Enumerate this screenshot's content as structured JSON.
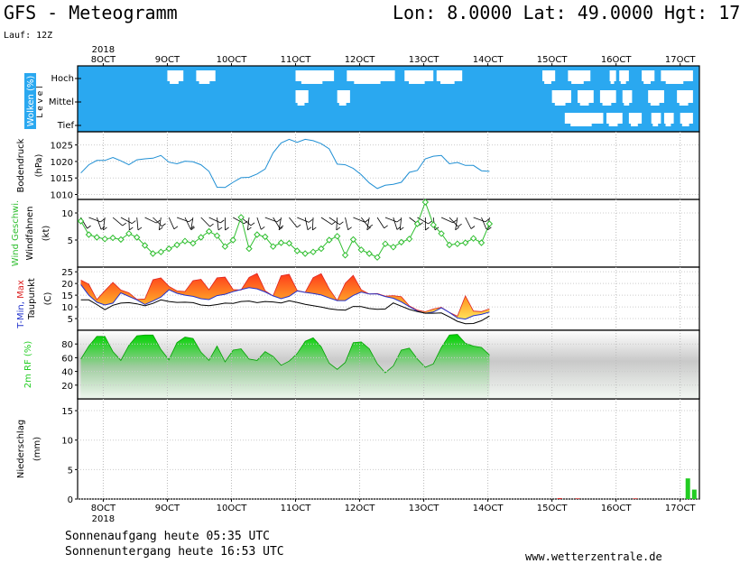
{
  "header": {
    "title": "GFS - Meteogramm",
    "location": "Lon: 8.0000 Lat: 49.0000 Hgt: 17",
    "run": "Lauf: 12Z"
  },
  "footer": {
    "sunrise": "Sonnenaufgang heute 05:35 UTC",
    "sunset": "Sonnenuntergang heute 16:53 UTC",
    "site": "www.wetterzentrale.de"
  },
  "colors": {
    "cloud_sky": "#2aa8f0",
    "pressure": "#1f8fd4",
    "wind_speed": "#2fbe2f",
    "temp_min": "#2233cc",
    "temp_max": "#dd2222",
    "humidity": "#22cc22",
    "precip": "#22cc22"
  },
  "chart_data": {
    "type": "line",
    "year": "2018",
    "x": {
      "unit": "days from 8 OCT 2018 00 UTC",
      "range": [
        -0.4,
        9.3
      ],
      "ticks": [
        0,
        1,
        2,
        3,
        4,
        5,
        6,
        7,
        8,
        9
      ],
      "tick_labels": [
        "8OCT",
        "9OCT",
        "10OCT",
        "11OCT",
        "12OCT",
        "13OCT",
        "14OCT",
        "15OCT",
        "16OCT",
        "17OCT"
      ]
    },
    "panels": [
      {
        "id": "clouds",
        "ylabel": "Wolken (%)",
        "ylabel2": "L e v e l",
        "levels": [
          "Hoch",
          "Mittel",
          "Tief"
        ],
        "clear_spans": {
          "Hoch": [
            [
              1.0,
              1.25
            ],
            [
              1.45,
              1.75
            ],
            [
              3.0,
              3.6
            ],
            [
              3.8,
              4.55
            ],
            [
              4.7,
              5.15
            ],
            [
              5.2,
              5.6
            ],
            [
              6.85,
              7.05
            ],
            [
              7.25,
              7.6
            ],
            [
              7.9,
              8.0
            ],
            [
              8.05,
              8.2
            ],
            [
              8.4,
              8.6
            ],
            [
              8.7,
              9.2
            ]
          ],
          "Mittel": [
            [
              3.0,
              3.2
            ],
            [
              3.65,
              3.85
            ],
            [
              7.0,
              7.3
            ],
            [
              7.4,
              7.65
            ],
            [
              7.75,
              8.0
            ],
            [
              8.1,
              8.25
            ],
            [
              8.5,
              8.75
            ],
            [
              8.95,
              9.2
            ]
          ],
          "Tief": [
            [
              7.2,
              7.8
            ],
            [
              7.85,
              8.1
            ],
            [
              8.2,
              8.4
            ],
            [
              8.55,
              8.7
            ],
            [
              8.75,
              8.9
            ],
            [
              9.0,
              9.2
            ]
          ]
        }
      },
      {
        "id": "pressure",
        "ylabel": "Bodendruck",
        "ylabel2": "(hPa)",
        "yticks": [
          1010,
          1015,
          1020,
          1025
        ],
        "ylim": [
          1008.5,
          1029
        ],
        "values": [
          1016.5,
          1019,
          1020.3,
          1020.3,
          1021.2,
          1020.2,
          1019,
          1020.5,
          1020.8,
          1021,
          1021.8,
          1019.8,
          1019.3,
          1020.1,
          1019.9,
          1019,
          1017,
          1012.2,
          1012.1,
          1013.7,
          1015.1,
          1015.2,
          1016.2,
          1017.7,
          1022.6,
          1025.6,
          1026.7,
          1025.8,
          1026.7,
          1026.3,
          1025.4,
          1023.8,
          1019.2,
          1019,
          1017.9,
          1016,
          1013.5,
          1011.8,
          1012.8,
          1013.1,
          1013.7,
          1016.7,
          1017.3,
          1020.8,
          1021.6,
          1021.8,
          1019.3,
          1019.7,
          1018.8,
          1018.8,
          1017.2,
          1017
        ]
      },
      {
        "id": "wind",
        "ylabel": "Wind Geschwi.",
        "ylabel2": "Windfahnen",
        "ylabel3": "(kt)",
        "yticks": [
          5,
          10
        ],
        "ylim": [
          0,
          12.5
        ],
        "values": [
          8.5,
          6,
          5.5,
          5.2,
          5.4,
          5.1,
          6.2,
          5.5,
          4,
          2.5,
          2.8,
          3.4,
          4.1,
          4.8,
          4.4,
          5.5,
          6.6,
          5.8,
          3.8,
          5,
          9.2,
          3.4,
          6,
          5.6,
          3.8,
          4.5,
          4.4,
          3,
          2.5,
          2.8,
          3.4,
          5,
          5.7,
          2.2,
          5.1,
          3.2,
          2.5,
          1.8,
          4.3,
          3.7,
          4.6,
          5.2,
          8,
          12,
          7.8,
          6.2,
          4.1,
          4.3,
          4.5,
          5.3,
          4.5,
          8
        ]
      },
      {
        "id": "temperature",
        "ylabel": "T-Min, Max",
        "ylabel2": "Taupunkt",
        "ylabel3": "(C)",
        "yticks": [
          5,
          10,
          15,
          20,
          25
        ],
        "ylim": [
          0,
          27
        ],
        "series": [
          {
            "name": "Min",
            "values": [
              19.5,
              15,
              12,
              10.8,
              11.6,
              16,
              14.5,
              13,
              11,
              12.5,
              14.2,
              17.3,
              15.8,
              15,
              14.5,
              13.5,
              13.1,
              14.8,
              15.4,
              16.5,
              17.4,
              18.2,
              17.7,
              16.4,
              14.7,
              13.5,
              14.5,
              16.8,
              16.2,
              15.7,
              15.1,
              13.8,
              12.7,
              12.7,
              14.9,
              16.3,
              15.5,
              15.5,
              14.4,
              13.7,
              12.1,
              10.1,
              8.2,
              7.3,
              7.8,
              9.6,
              7.6,
              5.3,
              4.8,
              6.2,
              6.8,
              7.8
            ]
          },
          {
            "name": "Max",
            "values": [
              21.5,
              19.7,
              13.1,
              16.9,
              20.5,
              17.2,
              16,
              13.2,
              13.4,
              21.6,
              22.4,
              18.8,
              16.8,
              16.6,
              21.2,
              21.8,
              17.3,
              22.4,
              22.7,
              17.4,
              17.2,
              22.6,
              24.3,
              16.9,
              14.7,
              23.3,
              23.9,
              17,
              16.2,
              22.5,
              24.2,
              17.7,
              12.7,
              20.1,
              23.5,
              17.3,
              15.5,
              15.7,
              14.6,
              14.8,
              14.4,
              10.4,
              8.6,
              7.9,
              9.1,
              9.8,
              7.6,
              6,
              14.7,
              8.2,
              8,
              9.1
            ]
          },
          {
            "name": "Taupunkt",
            "values": [
              13,
              13,
              11,
              8.8,
              10.7,
              11.6,
              11.8,
              11.3,
              10.5,
              11.5,
              13,
              12.3,
              11.9,
              12,
              11.8,
              10.8,
              10.5,
              11,
              11.6,
              11.5,
              12.3,
              12.5,
              11.8,
              12.3,
              12.1,
              11.7,
              12.6,
              11.9,
              11.1,
              10.5,
              9.9,
              9.2,
              8.8,
              8.6,
              10.2,
              10.1,
              9.3,
              9,
              9.1,
              11.7,
              10.3,
              8.9,
              8,
              7.3,
              7.3,
              7.4,
              5.7,
              3.8,
              2.8,
              2.9,
              4.1,
              6.1
            ]
          }
        ]
      },
      {
        "id": "humidity",
        "ylabel": "2m RF (%)",
        "yticks": [
          20,
          40,
          60,
          80
        ],
        "ylim": [
          0,
          100
        ],
        "values": [
          58,
          77,
          91,
          91,
          69,
          56,
          78,
          92,
          93,
          93,
          72,
          57,
          82,
          90,
          88,
          68,
          56,
          77,
          54,
          71,
          73,
          58,
          56,
          69,
          62,
          49,
          55,
          66,
          84,
          89,
          76,
          52,
          43,
          53,
          82,
          83,
          73,
          51,
          38,
          48,
          71,
          74,
          58,
          46,
          51,
          75,
          93,
          94,
          81,
          77,
          75,
          64
        ]
      },
      {
        "id": "precipitation",
        "ylabel": "Niederschlag",
        "ylabel2": "(mm)",
        "yticks": [
          0,
          5,
          10,
          15
        ],
        "ylim": [
          0,
          17
        ],
        "bars": [
          {
            "x": 9.12,
            "value": 3.5
          },
          {
            "x": 9.22,
            "value": 1.6
          },
          {
            "x": 7.12,
            "value": 0.15
          },
          {
            "x": 7.4,
            "value": 0.1
          },
          {
            "x": 8.3,
            "value": 0.1
          }
        ]
      }
    ]
  }
}
